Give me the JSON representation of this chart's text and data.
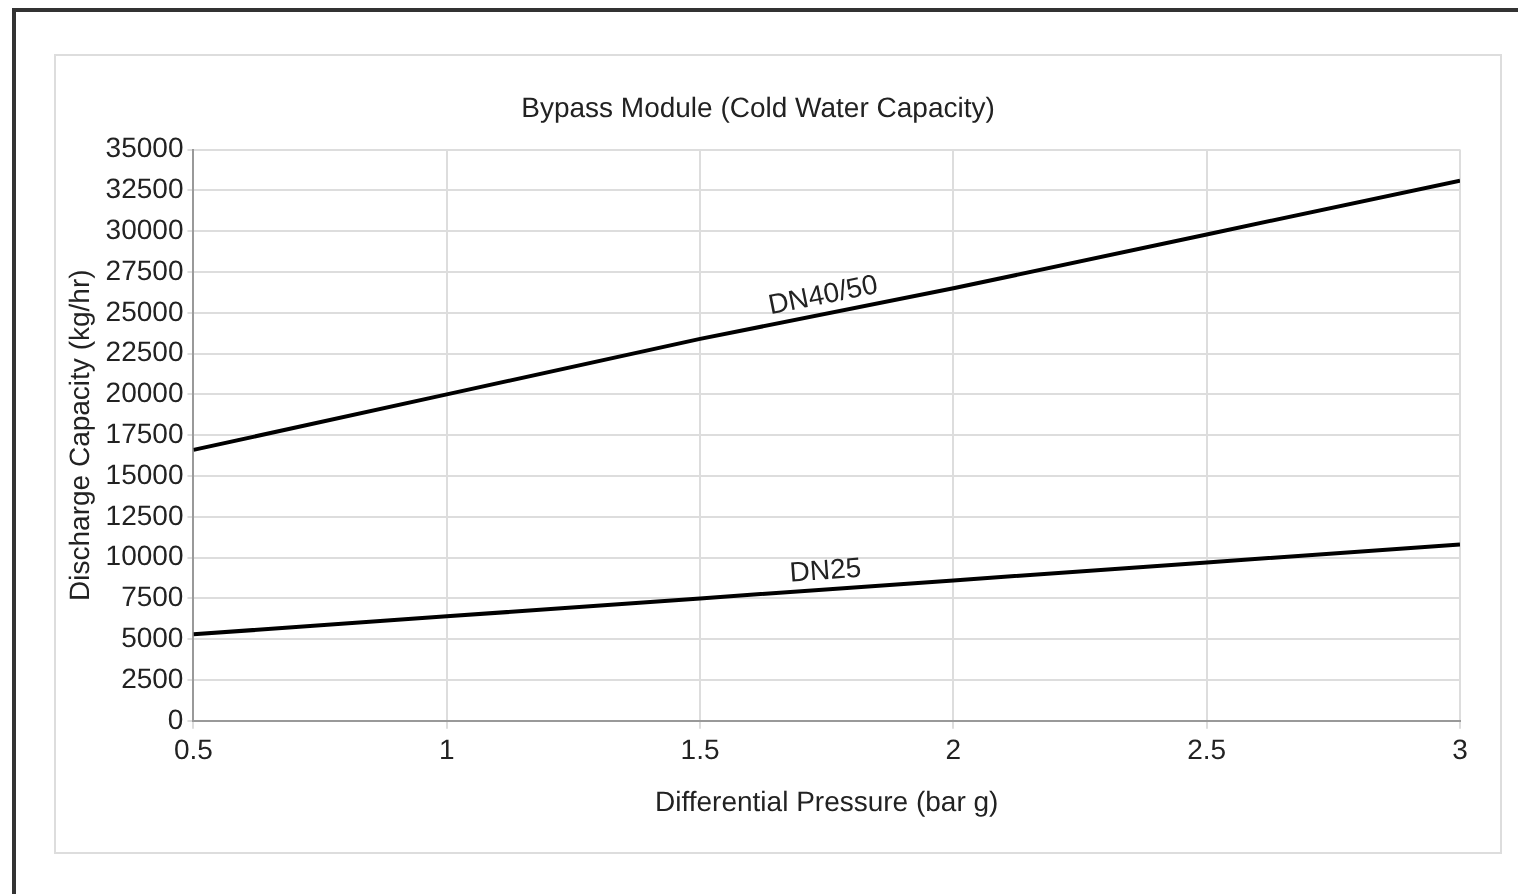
{
  "chart_data": {
    "type": "line",
    "title": "Bypass Module (Cold Water Capacity)",
    "xlabel": "Differential Pressure (bar g)",
    "ylabel": "Discharge Capacity (kg/hr)",
    "x": [
      0.5,
      1,
      1.5,
      2,
      2.5,
      3
    ],
    "series": [
      {
        "name": "DN40/50",
        "color": "#000000",
        "values": [
          16600,
          20000,
          23400,
          26500,
          29800,
          33100
        ]
      },
      {
        "name": "DN25",
        "color": "#000000",
        "values": [
          5300,
          6400,
          7500,
          8600,
          9700,
          10800
        ]
      }
    ],
    "xlim": [
      0.5,
      3
    ],
    "xticks": [
      0.5,
      1,
      1.5,
      2,
      2.5,
      3
    ],
    "ylim": [
      0,
      35000
    ],
    "yticks": [
      0,
      2500,
      5000,
      7500,
      10000,
      12500,
      15000,
      17500,
      20000,
      22500,
      25000,
      27500,
      30000,
      32500,
      35000
    ],
    "grid": true,
    "legend": false,
    "marker": "none",
    "line_style": "solid"
  }
}
